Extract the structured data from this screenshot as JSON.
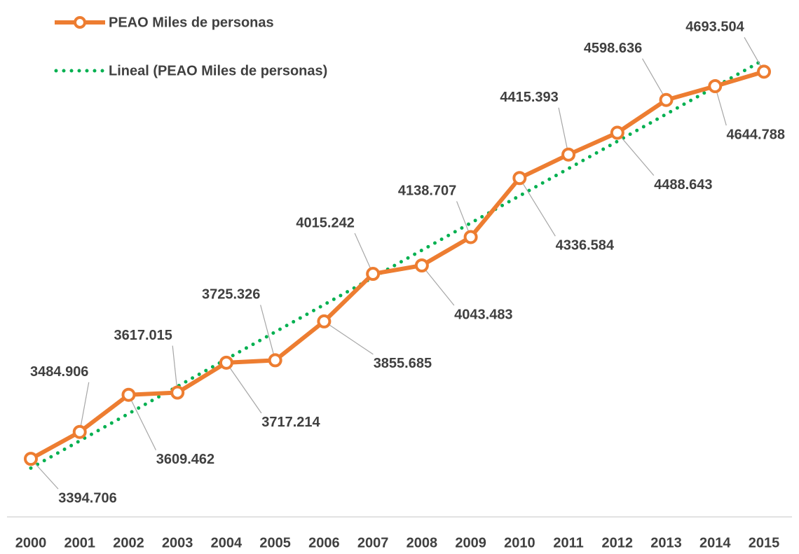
{
  "chart_data": {
    "type": "line",
    "categories": [
      "2000",
      "2001",
      "2002",
      "2003",
      "2004",
      "2005",
      "2006",
      "2007",
      "2008",
      "2009",
      "2010",
      "2011",
      "2012",
      "2013",
      "2014",
      "2015"
    ],
    "series": [
      {
        "name": "PEAO Miles de personas",
        "color": "#ed7d31",
        "values": [
          3394.706,
          3484.906,
          3609.462,
          3617.015,
          3717.214,
          3725.326,
          3855.685,
          4015.242,
          4043.483,
          4138.707,
          4336.584,
          4415.393,
          4488.643,
          4598.636,
          4644.788,
          4693.504
        ]
      }
    ],
    "trendline": {
      "type": "linear",
      "name": "Lineal (PEAO Miles de personas)",
      "color": "#00b050"
    },
    "ylim": [
      3200,
      4800
    ],
    "legend": "top-left"
  }
}
